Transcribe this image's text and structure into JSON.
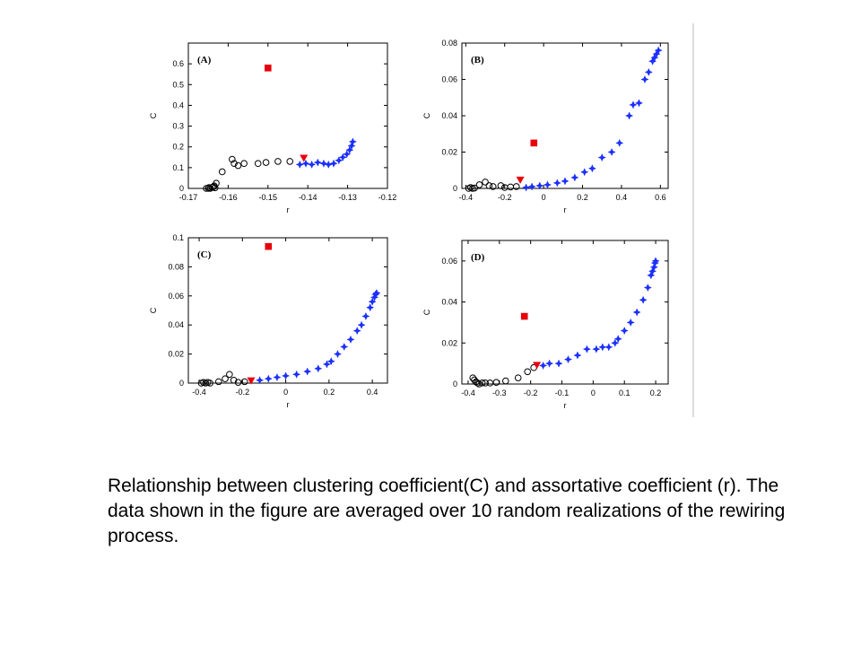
{
  "caption": "Relationship between clustering coefficient(C) and assortative coefficient (r). The data shown in the figure are averaged over 10 random realizations of the rewiring process.",
  "colors": {
    "open_circle": "#000000",
    "star": "#1a2fff",
    "square": "#e8000b",
    "triangle": "#e8000b",
    "divider": "#bbbbbb"
  },
  "chart_data": [
    {
      "type": "scatter",
      "panel_label": "(A)",
      "xlabel": "r",
      "ylabel": "C",
      "xlim": [
        -0.17,
        -0.12
      ],
      "ylim": [
        0,
        0.7
      ],
      "xticks": [
        -0.17,
        -0.16,
        -0.15,
        -0.14,
        -0.13,
        -0.12
      ],
      "xtick_labels": [
        "-0.17",
        "-0.16",
        "-0.15",
        "-0.14",
        "-0.13",
        "-0.12"
      ],
      "yticks": [
        0,
        0.1,
        0.2,
        0.3,
        0.4,
        0.5,
        0.6
      ],
      "ytick_labels": [
        "0",
        "0.1",
        "0.2",
        "0.3",
        "0.4",
        "0.5",
        "0.6"
      ],
      "series": [
        {
          "marker": "circle",
          "points": [
            [
              -0.1655,
              0.0
            ],
            [
              -0.165,
              0.0
            ],
            [
              -0.1648,
              0.004
            ],
            [
              -0.1645,
              0.0
            ],
            [
              -0.164,
              0.005
            ],
            [
              -0.1637,
              0.008
            ],
            [
              -0.1635,
              0.012
            ],
            [
              -0.1633,
              0.003
            ],
            [
              -0.163,
              0.025
            ],
            [
              -0.1615,
              0.08
            ],
            [
              -0.159,
              0.14
            ],
            [
              -0.1585,
              0.12
            ],
            [
              -0.1575,
              0.11
            ],
            [
              -0.156,
              0.12
            ],
            [
              -0.1525,
              0.12
            ],
            [
              -0.1505,
              0.125
            ],
            [
              -0.1475,
              0.13
            ],
            [
              -0.1445,
              0.13
            ]
          ]
        },
        {
          "marker": "star",
          "points": [
            [
              -0.142,
              0.115
            ],
            [
              -0.1405,
              0.12
            ],
            [
              -0.139,
              0.115
            ],
            [
              -0.1375,
              0.125
            ],
            [
              -0.136,
              0.12
            ],
            [
              -0.1348,
              0.115
            ],
            [
              -0.1335,
              0.12
            ],
            [
              -0.1322,
              0.135
            ],
            [
              -0.1312,
              0.15
            ],
            [
              -0.1302,
              0.165
            ],
            [
              -0.1295,
              0.185
            ],
            [
              -0.129,
              0.205
            ],
            [
              -0.1287,
              0.225
            ]
          ]
        },
        {
          "marker": "square",
          "points": [
            [
              -0.15,
              0.58
            ]
          ]
        },
        {
          "marker": "triangle",
          "points": [
            [
              -0.141,
              0.145
            ]
          ]
        }
      ]
    },
    {
      "type": "scatter",
      "panel_label": "(B)",
      "xlabel": "r",
      "ylabel": "C",
      "xlim": [
        -0.42,
        0.64
      ],
      "ylim": [
        0,
        0.08
      ],
      "xticks": [
        -0.4,
        -0.2,
        0,
        0.2,
        0.4,
        0.6
      ],
      "xtick_labels": [
        "-0.4",
        "-0.2",
        "0",
        "0.2",
        "0.4",
        "0.6"
      ],
      "yticks": [
        0,
        0.02,
        0.04,
        0.06,
        0.08
      ],
      "ytick_labels": [
        "0",
        "0.02",
        "0.04",
        "0.06",
        "0.08"
      ],
      "series": [
        {
          "marker": "circle",
          "points": [
            [
              -0.385,
              0.0
            ],
            [
              -0.375,
              0.0005
            ],
            [
              -0.365,
              0.0
            ],
            [
              -0.355,
              0.0002
            ],
            [
              -0.33,
              0.002
            ],
            [
              -0.3,
              0.0035
            ],
            [
              -0.28,
              0.0015
            ],
            [
              -0.26,
              0.001
            ],
            [
              -0.22,
              0.0015
            ],
            [
              -0.2,
              0.0005
            ],
            [
              -0.17,
              0.0008
            ],
            [
              -0.14,
              0.001
            ]
          ]
        },
        {
          "marker": "star",
          "points": [
            [
              -0.09,
              0.0005
            ],
            [
              -0.06,
              0.001
            ],
            [
              -0.02,
              0.0015
            ],
            [
              0.02,
              0.002
            ],
            [
              0.07,
              0.003
            ],
            [
              0.11,
              0.004
            ],
            [
              0.16,
              0.006
            ],
            [
              0.21,
              0.009
            ],
            [
              0.25,
              0.011
            ],
            [
              0.3,
              0.017
            ],
            [
              0.35,
              0.02
            ],
            [
              0.39,
              0.025
            ],
            [
              0.44,
              0.04
            ],
            [
              0.46,
              0.046
            ],
            [
              0.49,
              0.047
            ],
            [
              0.52,
              0.06
            ],
            [
              0.54,
              0.064
            ],
            [
              0.56,
              0.07
            ],
            [
              0.57,
              0.072
            ],
            [
              0.58,
              0.074
            ],
            [
              0.59,
              0.076
            ]
          ]
        },
        {
          "marker": "square",
          "points": [
            [
              -0.05,
              0.025
            ]
          ]
        },
        {
          "marker": "triangle",
          "points": [
            [
              -0.12,
              0.0045
            ]
          ]
        }
      ]
    },
    {
      "type": "scatter",
      "panel_label": "(C)",
      "xlabel": "r",
      "ylabel": "C",
      "xlim": [
        -0.45,
        0.47
      ],
      "ylim": [
        0,
        0.1
      ],
      "xticks": [
        -0.4,
        -0.2,
        0,
        0.2,
        0.4
      ],
      "xtick_labels": [
        "-0.4",
        "-0.2",
        "0",
        "0.2",
        "0.4"
      ],
      "yticks": [
        0,
        0.02,
        0.04,
        0.06,
        0.08,
        0.1
      ],
      "ytick_labels": [
        "0",
        "0.02",
        "0.04",
        "0.06",
        "0.08",
        "0.1"
      ],
      "series": [
        {
          "marker": "circle",
          "points": [
            [
              -0.39,
              0.0
            ],
            [
              -0.38,
              0.0005
            ],
            [
              -0.37,
              0.0
            ],
            [
              -0.36,
              0.0005
            ],
            [
              -0.35,
              0.0
            ],
            [
              -0.31,
              0.001
            ],
            [
              -0.28,
              0.003
            ],
            [
              -0.26,
              0.006
            ],
            [
              -0.24,
              0.002
            ],
            [
              -0.22,
              0.0005
            ],
            [
              -0.19,
              0.001
            ]
          ]
        },
        {
          "marker": "star",
          "points": [
            [
              -0.12,
              0.002
            ],
            [
              -0.08,
              0.003
            ],
            [
              -0.04,
              0.004
            ],
            [
              0.0,
              0.005
            ],
            [
              0.05,
              0.006
            ],
            [
              0.1,
              0.008
            ],
            [
              0.15,
              0.01
            ],
            [
              0.19,
              0.013
            ],
            [
              0.21,
              0.015
            ],
            [
              0.24,
              0.02
            ],
            [
              0.27,
              0.025
            ],
            [
              0.3,
              0.03
            ],
            [
              0.33,
              0.036
            ],
            [
              0.35,
              0.04
            ],
            [
              0.37,
              0.046
            ],
            [
              0.39,
              0.052
            ],
            [
              0.4,
              0.056
            ],
            [
              0.41,
              0.059
            ],
            [
              0.415,
              0.061
            ],
            [
              0.42,
              0.062
            ]
          ]
        },
        {
          "marker": "square",
          "points": [
            [
              -0.08,
              0.094
            ]
          ]
        },
        {
          "marker": "triangle",
          "points": [
            [
              -0.16,
              0.0015
            ]
          ]
        }
      ]
    },
    {
      "type": "scatter",
      "panel_label": "(D)",
      "xlabel": "r",
      "ylabel": "C",
      "xlim": [
        -0.42,
        0.24
      ],
      "ylim": [
        0,
        0.07
      ],
      "xticks": [
        -0.4,
        -0.3,
        -0.2,
        -0.1,
        0,
        0.1,
        0.2
      ],
      "xtick_labels": [
        "-0.4",
        "-0.3",
        "-0.2",
        "-0.1",
        "0",
        "0.1",
        "0.2"
      ],
      "yticks": [
        0,
        0.02,
        0.04,
        0.06
      ],
      "ytick_labels": [
        "0",
        "0.02",
        "0.04",
        "0.06"
      ],
      "series": [
        {
          "marker": "circle",
          "points": [
            [
              -0.385,
              0.003
            ],
            [
              -0.38,
              0.002
            ],
            [
              -0.375,
              0.001
            ],
            [
              -0.37,
              0.0005
            ],
            [
              -0.365,
              0.0
            ],
            [
              -0.355,
              0.0005
            ],
            [
              -0.345,
              0.0005
            ],
            [
              -0.33,
              0.0005
            ],
            [
              -0.31,
              0.0008
            ],
            [
              -0.28,
              0.0015
            ],
            [
              -0.24,
              0.003
            ],
            [
              -0.21,
              0.006
            ],
            [
              -0.19,
              0.008
            ]
          ]
        },
        {
          "marker": "star",
          "points": [
            [
              -0.16,
              0.009
            ],
            [
              -0.14,
              0.01
            ],
            [
              -0.11,
              0.01
            ],
            [
              -0.08,
              0.012
            ],
            [
              -0.05,
              0.014
            ],
            [
              -0.02,
              0.017
            ],
            [
              0.01,
              0.017
            ],
            [
              0.03,
              0.018
            ],
            [
              0.05,
              0.018
            ],
            [
              0.07,
              0.02
            ],
            [
              0.08,
              0.022
            ],
            [
              0.1,
              0.026
            ],
            [
              0.12,
              0.03
            ],
            [
              0.14,
              0.035
            ],
            [
              0.16,
              0.041
            ],
            [
              0.175,
              0.047
            ],
            [
              0.185,
              0.053
            ],
            [
              0.19,
              0.055
            ],
            [
              0.195,
              0.057
            ],
            [
              0.198,
              0.059
            ],
            [
              0.2,
              0.06
            ]
          ]
        },
        {
          "marker": "square",
          "points": [
            [
              -0.22,
              0.033
            ]
          ]
        },
        {
          "marker": "triangle",
          "points": [
            [
              -0.18,
              0.009
            ]
          ]
        }
      ]
    }
  ]
}
